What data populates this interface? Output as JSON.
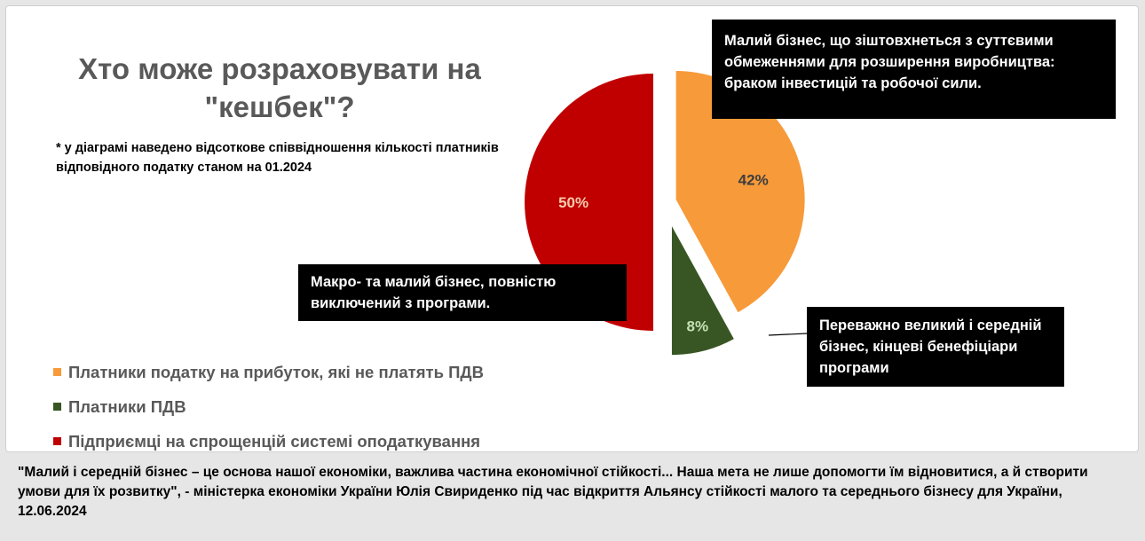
{
  "title": "Хто може розраховувати на \"кешбек\"?",
  "note": "* у діаграмі наведено відсоткове співвідношення кількості платників відповідного податку станом на 01.2024",
  "chart_data": {
    "type": "pie",
    "categories": [
      "Платники податку на прибуток, які не платять ПДВ",
      "Платники ПДВ",
      "Підприємці на спрощенцій системі оподаткування"
    ],
    "values": [
      42,
      8,
      50
    ],
    "data_labels": [
      "42%",
      "8%",
      "50%"
    ],
    "colors": [
      "#f79a3a",
      "#375623",
      "#c00000"
    ],
    "label_colors": [
      "#3d3d3d",
      "#c6e0b4",
      "#f8cbad"
    ],
    "exploded": true,
    "legend_position": "bottom-left"
  },
  "callouts": {
    "orange": "Малий бізнес, що зіштовхнеться з суттєвими обмеженнями для розширення виробництва: браком інвестицій та робочої сили.",
    "red": "Макро- та малий бізнес, повністю виключений з програми.",
    "green": "Переважно великий і середній бізнес, кінцеві бенефіціари програми"
  },
  "quote": "\"Малий і середній бізнес – це основа нашої економіки, важлива частина економічної стійкості... Наша мета не лише допомогти їм відновитися, а й створити умови для їх розвитку\", - міністерка економіки України Юлія Свириденко під час відкриття Альянсу стійкості малого та середнього бізнесу для України, 12.06.2024"
}
